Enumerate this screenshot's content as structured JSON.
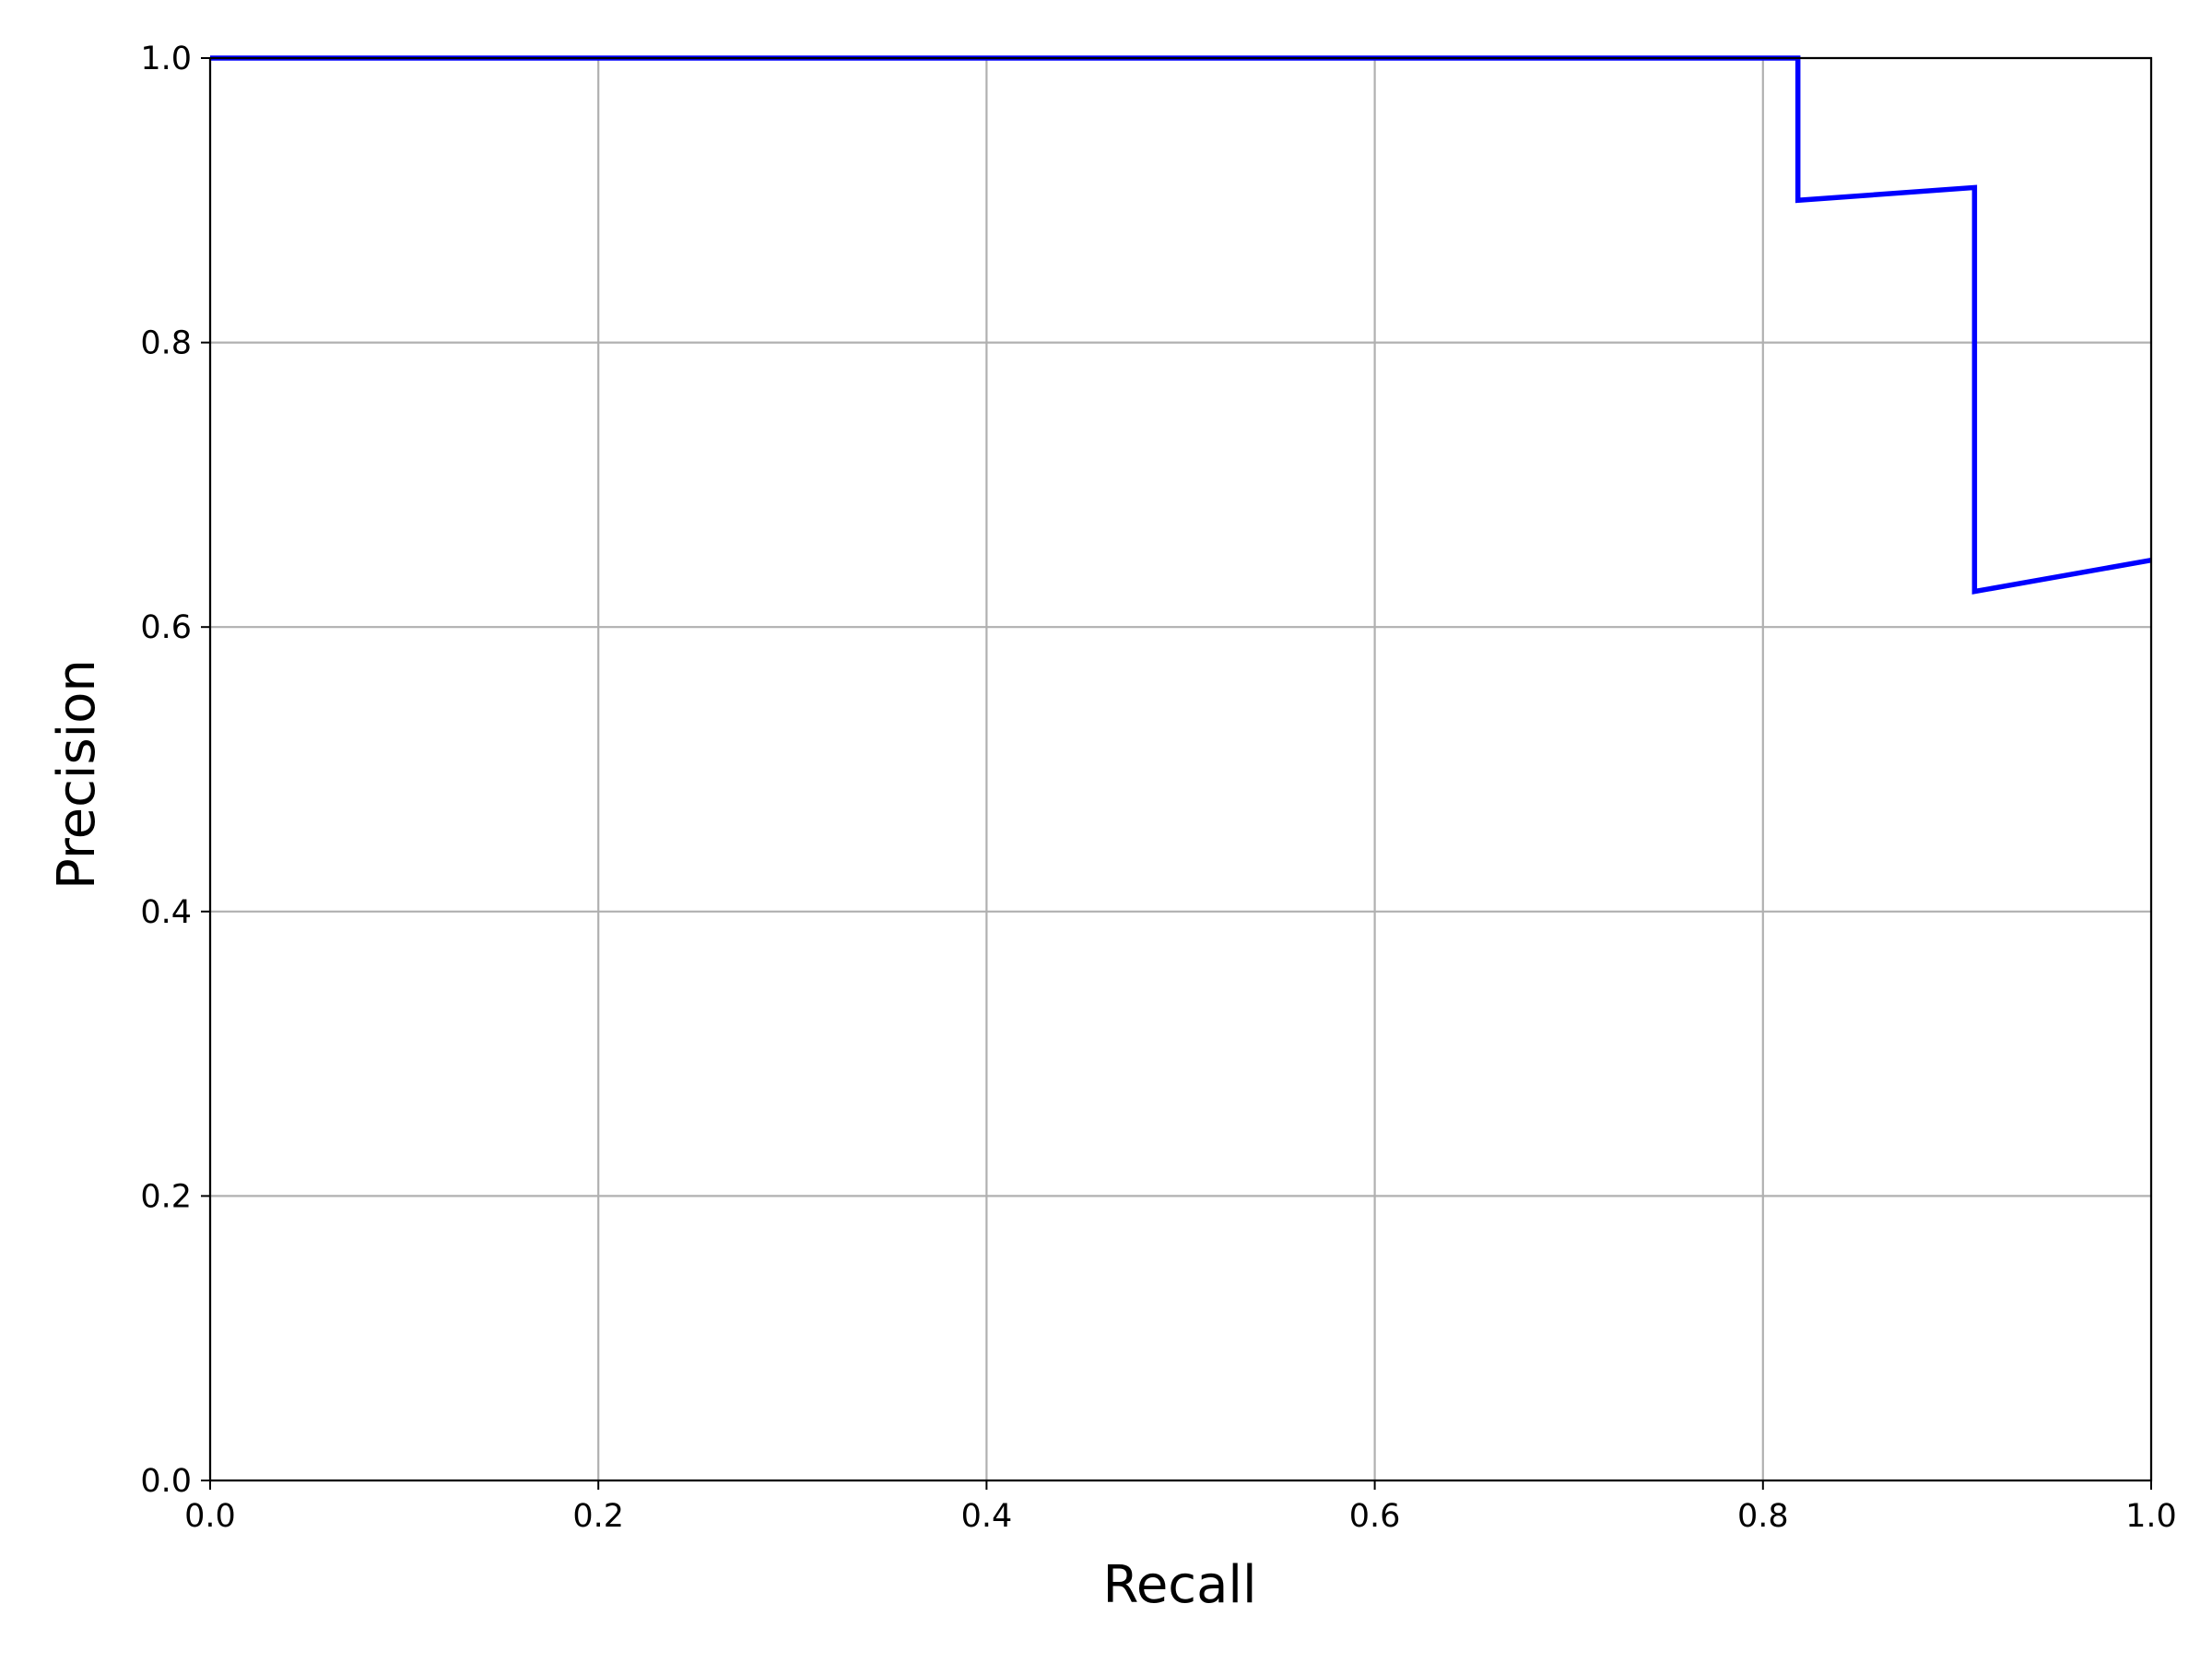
{
  "chart_data": {
    "type": "line",
    "title": "",
    "xlabel": "Recall",
    "ylabel": "Precision",
    "xlim": [
      0.0,
      1.0
    ],
    "ylim": [
      0.0,
      1.0
    ],
    "xticks": [
      "0.0",
      "0.2",
      "0.4",
      "0.6",
      "0.8",
      "1.0"
    ],
    "yticks": [
      "0.0",
      "0.2",
      "0.4",
      "0.6",
      "0.8",
      "1.0"
    ],
    "grid": true,
    "legend": "none",
    "colors": {
      "line": "#0000ff",
      "grid": "#b0b0b0",
      "axes": "#000000"
    },
    "series": [
      {
        "x": [
          0.0,
          0.818,
          0.818,
          0.909,
          0.909,
          1.0
        ],
        "y": [
          1.0,
          1.0,
          0.9,
          0.909,
          0.625,
          0.647
        ]
      }
    ]
  }
}
